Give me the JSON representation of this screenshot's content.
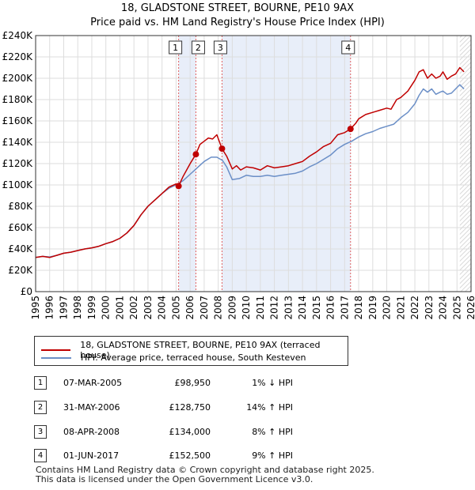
{
  "header": {
    "title": "18, GLADSTONE STREET, BOURNE, PE10 9AX",
    "subtitle": "Price paid vs. HM Land Registry's House Price Index (HPI)"
  },
  "colors": {
    "property_line": "#c00000",
    "hpi_line": "#6b8fc7",
    "shade": "#e8eef9",
    "vline": "#e06060",
    "grid": "#dddddd"
  },
  "legend": {
    "property_label": "18, GLADSTONE STREET, BOURNE, PE10 9AX (terraced house)",
    "hpi_label": "HPI: Average price, terraced house, South Kesteven"
  },
  "sales": [
    {
      "num": "1",
      "date": "07-MAR-2005",
      "price": "£98,950",
      "hpi": "1% ↓ HPI"
    },
    {
      "num": "2",
      "date": "31-MAY-2006",
      "price": "£128,750",
      "hpi": "14% ↑ HPI"
    },
    {
      "num": "3",
      "date": "08-APR-2008",
      "price": "£134,000",
      "hpi": "8% ↑ HPI"
    },
    {
      "num": "4",
      "date": "01-JUN-2017",
      "price": "£152,500",
      "hpi": "9% ↑ HPI"
    }
  ],
  "footer": {
    "line1": "Contains HM Land Registry data © Crown copyright and database right 2025.",
    "line2": "This data is licensed under the Open Government Licence v3.0."
  },
  "chart_data": {
    "type": "line",
    "title": "18, GLADSTONE STREET, BOURNE, PE10 9AX",
    "subtitle": "Price paid vs. HM Land Registry's House Price Index (HPI)",
    "xlabel": "",
    "ylabel": "",
    "xlim": [
      1995,
      2026
    ],
    "ylim": [
      0,
      240000
    ],
    "yticks": [
      0,
      20000,
      40000,
      60000,
      80000,
      100000,
      120000,
      140000,
      160000,
      180000,
      200000,
      220000,
      240000
    ],
    "ytick_labels": [
      "£0",
      "£20K",
      "£40K",
      "£60K",
      "£80K",
      "£100K",
      "£120K",
      "£140K",
      "£160K",
      "£180K",
      "£200K",
      "£220K",
      "£240K"
    ],
    "xticks": [
      1995,
      1996,
      1997,
      1998,
      1999,
      2000,
      2001,
      2002,
      2003,
      2004,
      2005,
      2006,
      2007,
      2008,
      2009,
      2010,
      2011,
      2012,
      2013,
      2014,
      2015,
      2016,
      2017,
      2018,
      2019,
      2020,
      2021,
      2022,
      2023,
      2024,
      2025,
      2026
    ],
    "grid": true,
    "shaded_ranges": [
      [
        2005.18,
        2006.41
      ],
      [
        2008.27,
        2017.42
      ]
    ],
    "hatched_from": 2025.2,
    "sale_markers": [
      {
        "label": "1",
        "x": 2005.18,
        "y": 98950
      },
      {
        "label": "2",
        "x": 2006.41,
        "y": 128750
      },
      {
        "label": "3",
        "x": 2008.27,
        "y": 134000
      },
      {
        "label": "4",
        "x": 2017.42,
        "y": 152500
      }
    ],
    "series": [
      {
        "name": "18, GLADSTONE STREET, BOURNE, PE10 9AX (terraced house)",
        "x": [
          1995,
          1995.5,
          1996,
          1996.5,
          1997,
          1997.5,
          1998,
          1998.5,
          1999,
          1999.5,
          2000,
          2000.5,
          2001,
          2001.5,
          2002,
          2002.5,
          2003,
          2003.5,
          2004,
          2004.5,
          2005,
          2005.18,
          2005.5,
          2006,
          2006.41,
          2006.7,
          2007,
          2007.3,
          2007.6,
          2007.9,
          2008.1,
          2008.27,
          2008.6,
          2009,
          2009.3,
          2009.6,
          2010,
          2010.5,
          2011,
          2011.5,
          2012,
          2012.5,
          2013,
          2013.5,
          2014,
          2014.5,
          2015,
          2015.5,
          2016,
          2016.5,
          2017,
          2017.42,
          2017.8,
          2018,
          2018.5,
          2019,
          2019.5,
          2020,
          2020.3,
          2020.7,
          2021,
          2021.5,
          2022,
          2022.3,
          2022.6,
          2022.9,
          2023.2,
          2023.5,
          2023.8,
          2024,
          2024.3,
          2024.6,
          2024.9,
          2025.2,
          2025.5
        ],
        "values": [
          32000,
          33000,
          32000,
          34000,
          36000,
          37000,
          38500,
          40000,
          41000,
          42500,
          45000,
          47000,
          50000,
          55000,
          62000,
          72000,
          80000,
          86000,
          92000,
          98000,
          101000,
          98950,
          108000,
          120000,
          128750,
          138000,
          141000,
          144000,
          143000,
          147000,
          140000,
          134000,
          127000,
          115000,
          118000,
          114000,
          117000,
          116000,
          114000,
          118000,
          116000,
          117000,
          118000,
          120000,
          122000,
          127000,
          131000,
          136000,
          139000,
          147000,
          149000,
          152500,
          158000,
          162000,
          166000,
          168000,
          170000,
          172000,
          171000,
          180000,
          182000,
          188000,
          198000,
          206000,
          208000,
          200000,
          204000,
          200000,
          202000,
          206000,
          199000,
          202000,
          204000,
          210000,
          206000
        ]
      },
      {
        "name": "HPI: Average price, terraced house, South Kesteven",
        "x": [
          1995,
          1995.5,
          1996,
          1996.5,
          1997,
          1997.5,
          1998,
          1998.5,
          1999,
          1999.5,
          2000,
          2000.5,
          2001,
          2001.5,
          2002,
          2002.5,
          2003,
          2003.5,
          2004,
          2004.5,
          2005,
          2005.5,
          2006,
          2006.5,
          2007,
          2007.5,
          2007.9,
          2008.3,
          2008.6,
          2009,
          2009.5,
          2010,
          2010.5,
          2011,
          2011.5,
          2012,
          2012.5,
          2013,
          2013.5,
          2014,
          2014.5,
          2015,
          2015.5,
          2016,
          2016.5,
          2017,
          2017.5,
          2018,
          2018.5,
          2019,
          2019.5,
          2020,
          2020.5,
          2021,
          2021.5,
          2022,
          2022.3,
          2022.6,
          2022.9,
          2023.2,
          2023.5,
          2023.8,
          2024,
          2024.3,
          2024.6,
          2024.9,
          2025.2,
          2025.5
        ],
        "values": [
          32000,
          33000,
          32500,
          34000,
          36000,
          37000,
          38500,
          40000,
          41000,
          42500,
          45000,
          47000,
          50000,
          55000,
          62000,
          72000,
          80000,
          86000,
          92000,
          97000,
          100000,
          104000,
          110000,
          116000,
          122000,
          126000,
          126000,
          123000,
          117000,
          105000,
          106000,
          109000,
          108000,
          108000,
          109000,
          108000,
          109000,
          110000,
          111000,
          113000,
          117000,
          120000,
          124000,
          128000,
          134000,
          138000,
          141000,
          145000,
          148000,
          150000,
          153000,
          155000,
          157000,
          163000,
          168000,
          176000,
          184000,
          190000,
          187000,
          190000,
          185000,
          187000,
          188000,
          185000,
          186000,
          190000,
          194000,
          190000
        ]
      }
    ]
  }
}
